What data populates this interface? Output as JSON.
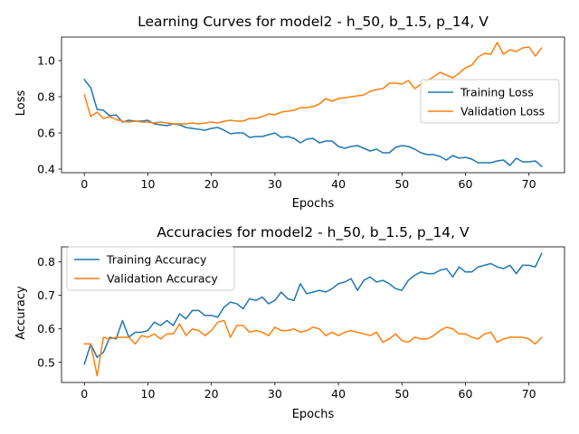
{
  "chart_data": [
    {
      "type": "line",
      "title": "Learning Curves for model2 - h_50, b_1.5, p_14, V",
      "xlabel": "Epochs",
      "ylabel": "Loss",
      "xlim": [
        -3.6,
        75.6
      ],
      "ylim": [
        0.38,
        1.13
      ],
      "xticks": [
        0,
        10,
        20,
        30,
        40,
        50,
        60,
        70
      ],
      "yticks": [
        0.4,
        0.6,
        0.8,
        1.0
      ],
      "ytick_labels": [
        "0.4",
        "0.6",
        "0.8",
        "1.0"
      ],
      "legend": "center-right",
      "x": [
        0,
        1,
        2,
        3,
        4,
        5,
        6,
        7,
        8,
        9,
        10,
        11,
        12,
        13,
        14,
        15,
        16,
        17,
        18,
        19,
        20,
        21,
        22,
        23,
        24,
        25,
        26,
        27,
        28,
        29,
        30,
        31,
        32,
        33,
        34,
        35,
        36,
        37,
        38,
        39,
        40,
        41,
        42,
        43,
        44,
        45,
        46,
        47,
        48,
        49,
        50,
        51,
        52,
        53,
        54,
        55,
        56,
        57,
        58,
        59,
        60,
        61,
        62,
        63,
        64,
        65,
        66,
        67,
        68,
        69,
        70,
        71,
        72
      ],
      "series": [
        {
          "name": "Training Loss",
          "color": "#1f77b4",
          "values": [
            0.895,
            0.85,
            0.73,
            0.725,
            0.695,
            0.7,
            0.66,
            0.67,
            0.665,
            0.665,
            0.67,
            0.65,
            0.645,
            0.64,
            0.65,
            0.645,
            0.63,
            0.625,
            0.62,
            0.615,
            0.625,
            0.63,
            0.615,
            0.595,
            0.6,
            0.6,
            0.575,
            0.58,
            0.58,
            0.59,
            0.6,
            0.575,
            0.58,
            0.57,
            0.545,
            0.565,
            0.57,
            0.545,
            0.555,
            0.555,
            0.525,
            0.515,
            0.525,
            0.53,
            0.515,
            0.5,
            0.51,
            0.49,
            0.49,
            0.52,
            0.53,
            0.525,
            0.51,
            0.49,
            0.48,
            0.48,
            0.47,
            0.45,
            0.475,
            0.46,
            0.465,
            0.455,
            0.435,
            0.435,
            0.435,
            0.445,
            0.45,
            0.42,
            0.46,
            0.44,
            0.44,
            0.445,
            0.415
          ]
        },
        {
          "name": "Validation Loss",
          "color": "#ff7f0e",
          "values": [
            0.81,
            0.69,
            0.715,
            0.68,
            0.69,
            0.675,
            0.665,
            0.66,
            0.665,
            0.66,
            0.66,
            0.655,
            0.66,
            0.655,
            0.65,
            0.65,
            0.65,
            0.655,
            0.65,
            0.655,
            0.66,
            0.655,
            0.665,
            0.67,
            0.665,
            0.665,
            0.68,
            0.68,
            0.69,
            0.705,
            0.7,
            0.715,
            0.72,
            0.725,
            0.74,
            0.74,
            0.745,
            0.76,
            0.79,
            0.775,
            0.79,
            0.795,
            0.8,
            0.805,
            0.81,
            0.83,
            0.84,
            0.845,
            0.875,
            0.875,
            0.87,
            0.89,
            0.845,
            0.87,
            0.89,
            0.91,
            0.935,
            0.92,
            0.905,
            0.93,
            0.96,
            0.975,
            1.02,
            1.04,
            1.035,
            1.1,
            1.035,
            1.06,
            1.05,
            1.07,
            1.075,
            1.025,
            1.07
          ]
        }
      ]
    },
    {
      "type": "line",
      "title": "Accuracies for model2 - h_50, b_1.5, p_14, V",
      "xlabel": "Epochs",
      "ylabel": "Accuracy",
      "xlim": [
        -3.6,
        75.6
      ],
      "ylim": [
        0.44,
        0.845
      ],
      "xticks": [
        0,
        10,
        20,
        30,
        40,
        50,
        60,
        70
      ],
      "yticks": [
        0.5,
        0.6,
        0.7,
        0.8
      ],
      "ytick_labels": [
        "0.5",
        "0.6",
        "0.7",
        "0.8"
      ],
      "legend": "top-left",
      "x": [
        0,
        1,
        2,
        3,
        4,
        5,
        6,
        7,
        8,
        9,
        10,
        11,
        12,
        13,
        14,
        15,
        16,
        17,
        18,
        19,
        20,
        21,
        22,
        23,
        24,
        25,
        26,
        27,
        28,
        29,
        30,
        31,
        32,
        33,
        34,
        35,
        36,
        37,
        38,
        39,
        40,
        41,
        42,
        43,
        44,
        45,
        46,
        47,
        48,
        49,
        50,
        51,
        52,
        53,
        54,
        55,
        56,
        57,
        58,
        59,
        60,
        61,
        62,
        63,
        64,
        65,
        66,
        67,
        68,
        69,
        70,
        71,
        72
      ],
      "series": [
        {
          "name": "Training Accuracy",
          "color": "#1f77b4",
          "values": [
            0.495,
            0.555,
            0.515,
            0.53,
            0.575,
            0.57,
            0.625,
            0.575,
            0.59,
            0.59,
            0.595,
            0.62,
            0.61,
            0.625,
            0.61,
            0.645,
            0.63,
            0.655,
            0.655,
            0.64,
            0.64,
            0.635,
            0.665,
            0.68,
            0.675,
            0.66,
            0.69,
            0.685,
            0.695,
            0.675,
            0.685,
            0.71,
            0.69,
            0.685,
            0.735,
            0.705,
            0.71,
            0.715,
            0.71,
            0.72,
            0.735,
            0.74,
            0.75,
            0.715,
            0.745,
            0.755,
            0.74,
            0.745,
            0.735,
            0.72,
            0.715,
            0.745,
            0.76,
            0.77,
            0.765,
            0.765,
            0.775,
            0.78,
            0.755,
            0.785,
            0.77,
            0.77,
            0.785,
            0.79,
            0.795,
            0.785,
            0.78,
            0.79,
            0.765,
            0.79,
            0.79,
            0.785,
            0.825
          ]
        },
        {
          "name": "Validation Accuracy",
          "color": "#ff7f0e",
          "values": [
            0.555,
            0.555,
            0.46,
            0.575,
            0.57,
            0.575,
            0.575,
            0.575,
            0.555,
            0.58,
            0.575,
            0.585,
            0.57,
            0.585,
            0.585,
            0.615,
            0.58,
            0.6,
            0.595,
            0.58,
            0.595,
            0.62,
            0.625,
            0.575,
            0.61,
            0.61,
            0.59,
            0.595,
            0.59,
            0.58,
            0.605,
            0.595,
            0.595,
            0.6,
            0.59,
            0.595,
            0.605,
            0.6,
            0.58,
            0.59,
            0.58,
            0.59,
            0.595,
            0.59,
            0.585,
            0.58,
            0.59,
            0.56,
            0.57,
            0.585,
            0.565,
            0.56,
            0.575,
            0.57,
            0.57,
            0.58,
            0.595,
            0.605,
            0.6,
            0.585,
            0.585,
            0.575,
            0.57,
            0.585,
            0.59,
            0.56,
            0.57,
            0.575,
            0.575,
            0.575,
            0.57,
            0.555,
            0.575
          ]
        }
      ]
    }
  ]
}
